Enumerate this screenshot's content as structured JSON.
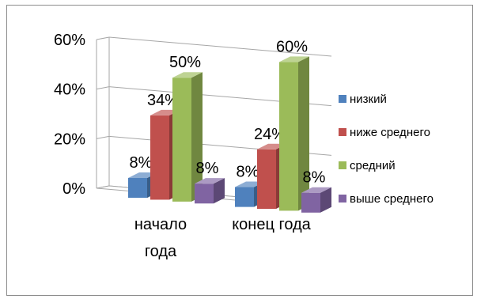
{
  "chart_data": {
    "type": "bar",
    "categories": [
      [
        "начало",
        "года"
      ],
      [
        "конец года"
      ]
    ],
    "series": [
      {
        "name": "низкий",
        "values": [
          8,
          8
        ],
        "color": "#4f81bd"
      },
      {
        "name": "ниже среднего",
        "values": [
          34,
          24
        ],
        "color": "#c0504d"
      },
      {
        "name": "средний",
        "values": [
          50,
          60
        ],
        "color": "#9bbb59"
      },
      {
        "name": "выше среднего",
        "values": [
          8,
          8
        ],
        "color": "#8064a2"
      }
    ],
    "data_labels": [
      [
        "8%",
        "34%",
        "50%",
        "8%"
      ],
      [
        "8%",
        "24%",
        "60%",
        "8%"
      ]
    ],
    "y_ticks": [
      {
        "value": 0,
        "label": "0%"
      },
      {
        "value": 20,
        "label": "20%"
      },
      {
        "value": 40,
        "label": "40%"
      },
      {
        "value": 60,
        "label": "60%"
      }
    ],
    "ylim": [
      0,
      60
    ],
    "grid": true,
    "legend": "right",
    "three_d": true
  }
}
